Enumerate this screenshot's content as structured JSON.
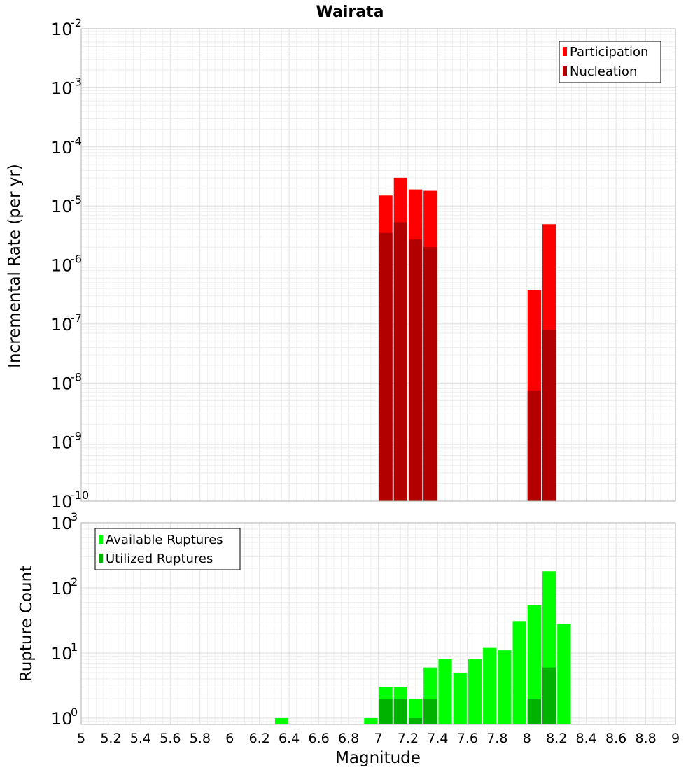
{
  "chart_data": [
    {
      "type": "bar",
      "title": "Wairata",
      "ylabel": "Incremental Rate (per yr)",
      "xlabel": "",
      "xlim": [
        5,
        9
      ],
      "ylim_exponents": [
        -10,
        -2
      ],
      "y_scale": "log",
      "bin_width": 0.1,
      "legend_position": "top-right",
      "grid": true,
      "y_tick_labels": [
        {
          "base": "10",
          "exp": "-2",
          "value_exp": -2
        },
        {
          "base": "10",
          "exp": "-3",
          "value_exp": -3
        },
        {
          "base": "10",
          "exp": "-4",
          "value_exp": -4
        },
        {
          "base": "10",
          "exp": "-5",
          "value_exp": -5
        },
        {
          "base": "10",
          "exp": "-6",
          "value_exp": -6
        },
        {
          "base": "10",
          "exp": "-7",
          "value_exp": -7
        },
        {
          "base": "10",
          "exp": "-8",
          "value_exp": -8
        },
        {
          "base": "10",
          "exp": "-9",
          "value_exp": -9
        },
        {
          "base": "10",
          "exp": "-10",
          "value_exp": -10
        }
      ],
      "series": [
        {
          "name": "Participation",
          "color": "#ff0000",
          "x": [
            7.05,
            7.15,
            7.25,
            7.35,
            8.05,
            8.15
          ],
          "values": [
            1.5e-05,
            3e-05,
            1.9e-05,
            1.8e-05,
            3.7e-07,
            4.9e-06
          ]
        },
        {
          "name": "Nucleation",
          "color": "#b20000",
          "x": [
            7.05,
            7.15,
            7.25,
            7.35,
            8.05,
            8.15
          ],
          "values": [
            3.5e-06,
            5.3e-06,
            2.7e-06,
            2e-06,
            7.5e-09,
            8e-08
          ]
        }
      ]
    },
    {
      "type": "bar",
      "title": "",
      "ylabel": "Rupture Count",
      "xlabel": "Magnitude",
      "xlim": [
        5,
        9
      ],
      "ylim": [
        0.8,
        1000
      ],
      "y_scale": "log",
      "bin_width": 0.1,
      "legend_position": "top-left",
      "grid": true,
      "x_tick_labels": [
        "5",
        "5.2",
        "5.4",
        "5.6",
        "5.8",
        "6",
        "6.2",
        "6.4",
        "6.6",
        "6.8",
        "7",
        "7.2",
        "7.4",
        "7.6",
        "7.8",
        "8",
        "8.2",
        "8.4",
        "8.6",
        "8.8",
        "9"
      ],
      "y_tick_labels": [
        {
          "base": "10",
          "exp": "3",
          "value_exp": 3
        },
        {
          "base": "10",
          "exp": "2",
          "value_exp": 2
        },
        {
          "base": "10",
          "exp": "1",
          "value_exp": 1
        },
        {
          "base": "10",
          "exp": "0",
          "value_exp": 0
        }
      ],
      "series": [
        {
          "name": "Available Ruptures",
          "color": "#00ff00",
          "x": [
            6.35,
            6.95,
            7.05,
            7.15,
            7.25,
            7.35,
            7.45,
            7.55,
            7.65,
            7.75,
            7.85,
            7.95,
            8.05,
            8.15,
            8.25
          ],
          "values": [
            1,
            1,
            3,
            3,
            2,
            6,
            8,
            5,
            8,
            12,
            11,
            31,
            54,
            180,
            28
          ]
        },
        {
          "name": "Utilized Ruptures",
          "color": "#00b200",
          "x": [
            7.05,
            7.15,
            7.25,
            7.35,
            8.05,
            8.15
          ],
          "values": [
            2,
            2,
            1,
            2,
            2,
            6
          ]
        }
      ]
    }
  ]
}
